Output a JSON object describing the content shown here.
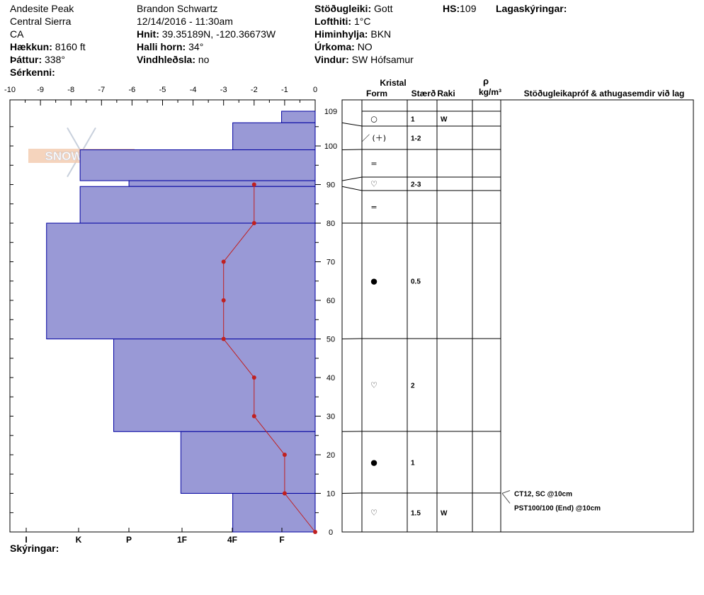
{
  "header": {
    "location_name": "Andesite Peak",
    "region": "Central Sierra",
    "state": "CA",
    "elevation_label": "Hækkun:",
    "elevation_value": "8160 ft",
    "aspect_label": "Þáttur:",
    "aspect_value": "338°",
    "features_label": "Sérkenni:",
    "observer": "Brandon Schwartz",
    "datetime": "12/14/2016 - 11:30am",
    "coords_label": "Hnit:",
    "coords_value": "39.35189N, -120.36673W",
    "slope_label": "Halli horn:",
    "slope_value": "34°",
    "wind_loading_label": "Vindhleðsla:",
    "wind_loading_value": "no",
    "stability_label": "Stöðugleiki:",
    "stability_value": "Gott",
    "air_temp_label": "Lofthiti:",
    "air_temp_value": "1°C",
    "sky_label": "Himinhylja:",
    "sky_value": "BKN",
    "precip_label": "Úrkoma:",
    "precip_value": "NO",
    "wind_label": "Vindur:",
    "wind_value": "SW Hófsamur",
    "hs_label": "HS:",
    "hs_value": "109",
    "layer_notes_label": "Lagaskýringar:"
  },
  "footer": {
    "notes_label": "Skýringar:"
  },
  "logo_text": "SNOWPILOT",
  "colors": {
    "layer_fill": "#9999d6",
    "layer_stroke": "#0000a0",
    "temp_line": "#c02020"
  },
  "columns": {
    "crystal": "Kristal",
    "form": "Form",
    "size": "Stærð",
    "moisture": "Raki",
    "density_symbol": "ρ",
    "density_unit": "kg/m³",
    "tests": "Stöðugleikapróf & athugasemdir við lag"
  },
  "chart_data": {
    "type": "area",
    "temperature_axis": {
      "ticks": [
        "-10",
        "-9",
        "-8",
        "-7",
        "-6",
        "-5",
        "-4",
        "-3",
        "-2",
        "-1",
        "0"
      ],
      "range": [
        -10,
        0
      ]
    },
    "hardness_axis": {
      "labels": [
        "I",
        "K",
        "P",
        "1F",
        "4F",
        "F"
      ]
    },
    "height_axis": {
      "ticks": [
        "0",
        "10",
        "20",
        "30",
        "40",
        "50",
        "60",
        "70",
        "80",
        "90",
        "100",
        "109"
      ],
      "range": [
        0,
        109
      ]
    },
    "hardness_profile": [
      {
        "top": 109,
        "bottom": 106,
        "hardness": 1.1
      },
      {
        "top": 106,
        "bottom": 99,
        "hardness": 2.7
      },
      {
        "top": 99,
        "bottom": 91,
        "hardness": 7.7
      },
      {
        "top": 91,
        "bottom": 89.5,
        "hardness": 6.1
      },
      {
        "top": 89.5,
        "bottom": 80,
        "hardness": 7.7
      },
      {
        "top": 80,
        "bottom": 50,
        "hardness": 8.8
      },
      {
        "top": 50,
        "bottom": 26,
        "hardness": 6.6
      },
      {
        "top": 26,
        "bottom": 10,
        "hardness": 4.4
      },
      {
        "top": 10,
        "bottom": 0,
        "hardness": 2.7
      }
    ],
    "temperature_profile": [
      {
        "height": 0,
        "temp": 0
      },
      {
        "height": 10,
        "temp": -1
      },
      {
        "height": 20,
        "temp": -1
      },
      {
        "height": 30,
        "temp": -2
      },
      {
        "height": 40,
        "temp": -2
      },
      {
        "height": 50,
        "temp": -3
      },
      {
        "height": 60,
        "temp": -3
      },
      {
        "height": 70,
        "temp": -3
      },
      {
        "height": 80,
        "temp": -2
      },
      {
        "height": 90,
        "temp": -2
      }
    ],
    "layers": [
      {
        "top": 109,
        "bottom": 106,
        "form": "○",
        "size": "",
        "moisture": ""
      },
      {
        "top": 106,
        "bottom": 99,
        "form": "○",
        "size": "1",
        "moisture": "W"
      },
      {
        "top": 99,
        "bottom": 91,
        "form": "／ (＋)",
        "size": "1-2",
        "moisture": ""
      },
      {
        "top": 91,
        "bottom": 89.5,
        "form": "=",
        "size": "",
        "moisture": ""
      },
      {
        "top": 89.5,
        "bottom": 80,
        "form": "♡",
        "size": "2-3",
        "moisture": ""
      },
      {
        "top": 80,
        "bottom": 50,
        "form": "=",
        "size": "",
        "moisture": ""
      },
      {
        "top": 50,
        "bottom": 26,
        "form": "●",
        "size": "0.5",
        "moisture": ""
      },
      {
        "top": 26,
        "bottom": 10,
        "form": "♡",
        "size": "2",
        "moisture": ""
      },
      {
        "top": 10,
        "bottom": 0,
        "form": "●",
        "size": "1",
        "moisture": ""
      }
    ],
    "grid_cells": [
      {
        "top": 109,
        "bottom": 106,
        "form": "○",
        "size": "1",
        "moisture": "W"
      },
      {
        "top": 106,
        "bottom": 99,
        "form": "／ (＋)",
        "size": "1-2",
        "moisture": ""
      },
      {
        "top": 99,
        "bottom": 91,
        "form": "=",
        "size": "",
        "moisture": ""
      },
      {
        "top": 91,
        "bottom": 89.5,
        "form": "♡",
        "size": "2-3",
        "moisture": ""
      },
      {
        "top": 89.5,
        "bottom": 80,
        "form": "=",
        "size": "",
        "moisture": ""
      },
      {
        "top": 80,
        "bottom": 50,
        "form": "●",
        "size": "0.5",
        "moisture": ""
      },
      {
        "top": 50,
        "bottom": 26,
        "form": "♡",
        "size": "2",
        "moisture": ""
      },
      {
        "top": 26,
        "bottom": 10,
        "form": "●",
        "size": "1",
        "moisture": ""
      },
      {
        "top": 10,
        "bottom": 0,
        "form": "♡",
        "size": "1.5",
        "moisture": "W"
      }
    ],
    "stability_tests": [
      {
        "height": 10,
        "text": "CT12, SC @10cm"
      },
      {
        "height": 10,
        "text": "PST100/100 (End) @10cm"
      }
    ]
  }
}
